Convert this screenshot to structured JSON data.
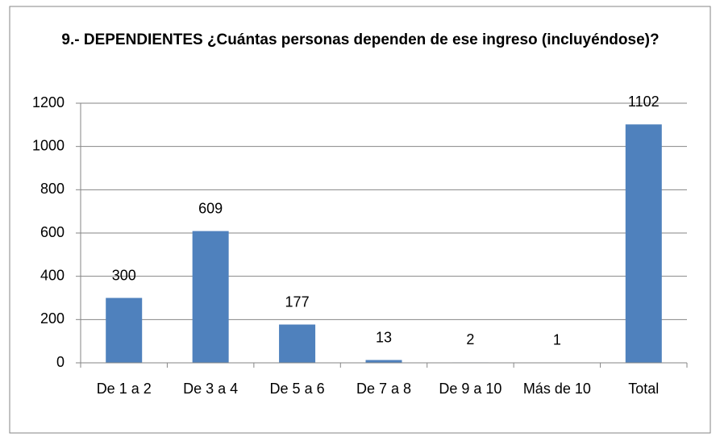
{
  "chart_data": {
    "type": "bar",
    "title": "9.- DEPENDIENTES ¿Cuántas personas dependen de ese ingreso (incluyéndose)?",
    "categories": [
      "De 1 a 2",
      "De 3 a 4",
      "De 5 a 6",
      "De 7 a 8",
      "De 9 a 10",
      "Más de 10",
      "Total"
    ],
    "values": [
      300,
      609,
      177,
      13,
      2,
      1,
      1102
    ],
    "color": "#4f81bd",
    "ylim": [
      0,
      1200
    ],
    "yticks": [
      0,
      200,
      400,
      600,
      800,
      1000,
      1200
    ],
    "grid": true
  }
}
